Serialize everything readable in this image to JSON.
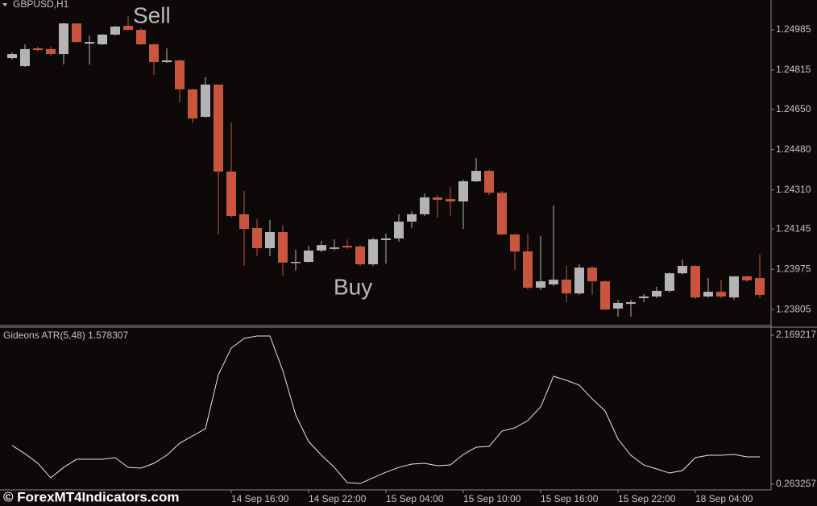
{
  "chart_data": [
    {
      "type": "candlestick",
      "title": "GBPUSD,H1",
      "categories": [
        null,
        null,
        null,
        null,
        null,
        null,
        null,
        null,
        null,
        null,
        null,
        null,
        null,
        null,
        null,
        null,
        null,
        "14 Sep 16:00",
        null,
        null,
        null,
        null,
        null,
        "14 Sep 22:00",
        null,
        null,
        null,
        null,
        null,
        "15 Sep 04:00",
        null,
        null,
        null,
        null,
        null,
        "15 Sep 10:00",
        null,
        null,
        null,
        null,
        null,
        "15 Sep 16:00",
        null,
        null,
        null,
        null,
        null,
        "15 Sep 22:00",
        null,
        null,
        null,
        null,
        null,
        "18 Sep 04:00",
        null,
        null,
        null,
        null,
        null
      ],
      "open": [
        1.24866,
        1.24832,
        1.24907,
        1.24904,
        1.24883,
        1.25012,
        1.24927,
        1.24924,
        1.24965,
        1.25002,
        1.24985,
        1.24924,
        1.24849,
        1.24856,
        1.24734,
        1.24618,
        1.24754,
        1.24387,
        1.24207,
        1.24149,
        1.24064,
        1.24132,
        1.24003,
        1.24006,
        1.24054,
        1.24061,
        1.24074,
        1.24071,
        1.23996,
        1.24098,
        1.24105,
        1.24176,
        1.24207,
        1.24278,
        1.24271,
        1.24261,
        1.24346,
        1.2439,
        1.24298,
        1.24122,
        1.2405,
        1.23897,
        1.23911,
        1.23931,
        1.23873,
        1.23982,
        1.23924,
        1.23809,
        1.23829,
        1.23853,
        1.2386,
        1.23884,
        1.23958,
        1.23989,
        1.2386,
        1.2388,
        1.23856,
        1.23945,
        1.23938
      ],
      "high": [
        1.2489,
        1.24924,
        1.24914,
        1.24914,
        1.25016,
        1.25012,
        1.24961,
        1.24968,
        1.25002,
        1.25043,
        1.24992,
        1.24927,
        1.24907,
        1.24859,
        1.24737,
        1.24785,
        1.24754,
        1.24594,
        1.24305,
        1.24186,
        1.24183,
        1.24162,
        1.24057,
        1.24074,
        1.24094,
        1.24101,
        1.24101,
        1.24077,
        1.24108,
        1.24125,
        1.24207,
        1.2422,
        1.24295,
        1.24288,
        1.24322,
        1.24353,
        1.24445,
        1.24394,
        1.24305,
        1.24125,
        1.24125,
        1.24115,
        1.24244,
        1.23989,
        1.23996,
        1.23989,
        1.23928,
        1.23846,
        1.23846,
        1.2387,
        1.23901,
        1.23962,
        1.24016,
        1.23992,
        1.23938,
        1.23931,
        1.23945,
        1.23948,
        1.24037
      ],
      "low": [
        1.24859,
        1.24829,
        1.24893,
        1.24873,
        1.24839,
        1.24931,
        1.24839,
        1.24921,
        1.24961,
        1.24982,
        1.24921,
        1.24795,
        1.24846,
        1.24679,
        1.24591,
        1.24615,
        1.24122,
        1.24193,
        1.23989,
        1.2403,
        1.2403,
        1.23948,
        1.23969,
        1.24003,
        1.24047,
        1.24054,
        1.24061,
        1.23989,
        1.23989,
        1.23999,
        1.24091,
        1.24149,
        1.242,
        1.24193,
        1.242,
        1.24145,
        1.24343,
        1.24288,
        1.24118,
        1.23972,
        1.2389,
        1.23887,
        1.23904,
        1.23836,
        1.23867,
        1.23867,
        1.23802,
        1.23775,
        1.23775,
        1.23836,
        1.23853,
        1.23877,
        1.23952,
        1.2385,
        1.23856,
        1.23853,
        1.23846,
        1.23921,
        1.23853
      ],
      "close": [
        1.24883,
        1.24904,
        1.249,
        1.24883,
        1.25012,
        1.24934,
        1.24934,
        1.24965,
        1.24999,
        1.24985,
        1.24924,
        1.24849,
        1.24856,
        1.24734,
        1.24611,
        1.24754,
        1.24387,
        1.242,
        1.24145,
        1.24064,
        1.24132,
        1.24003,
        1.24006,
        1.24054,
        1.24077,
        1.24067,
        1.24067,
        1.23996,
        1.24101,
        1.24105,
        1.24176,
        1.24207,
        1.24278,
        1.24268,
        1.24261,
        1.24346,
        1.2439,
        1.24298,
        1.24122,
        1.2405,
        1.23897,
        1.23924,
        1.23931,
        1.23873,
        1.23982,
        1.23924,
        1.23805,
        1.23833,
        1.23836,
        1.2386,
        1.23884,
        1.23958,
        1.23989,
        1.23856,
        1.2388,
        1.2386,
        1.23945,
        1.23928,
        1.23867
      ],
      "up_color": "#b4b4b4",
      "down_color": "#c9553f",
      "ylim": [
        1.23741,
        1.25111
      ],
      "yticks": [
        1.24985,
        1.24815,
        {
          "value": 1.2465,
          "label": "1.24650"
        },
        {
          "value": 1.2448,
          "label": "1.24480"
        },
        {
          "value": 1.2431,
          "label": "1.24310"
        },
        1.24145,
        1.23975,
        1.23805
      ],
      "annotations": [
        "Sell",
        "Buy"
      ]
    },
    {
      "type": "line",
      "title": "Gideons ATR(5,48) 1.578307",
      "color": "#e6e6e6",
      "values": [
        0.758,
        0.654,
        0.531,
        0.345,
        0.479,
        0.582,
        0.582,
        0.582,
        0.603,
        0.479,
        0.469,
        0.531,
        0.634,
        0.788,
        0.881,
        0.974,
        1.664,
        2.004,
        2.128,
        2.159,
        2.159,
        1.716,
        1.149,
        0.809,
        0.634,
        0.479,
        0.284,
        0.273,
        0.345,
        0.417,
        0.479,
        0.521,
        0.531,
        0.5,
        0.51,
        0.644,
        0.737,
        0.747,
        0.943,
        0.984,
        1.077,
        1.252,
        1.644,
        1.592,
        1.53,
        1.355,
        1.201,
        0.84,
        0.634,
        0.51,
        0.459,
        0.407,
        0.438,
        0.603,
        0.634,
        0.634,
        0.644,
        0.613,
        0.613
      ],
      "ylim": [
        0.19114,
        2.27225
      ],
      "yticks": [
        2.169217,
        0.263257
      ]
    }
  ],
  "watermark": "© ForexMT4Indicators.com"
}
